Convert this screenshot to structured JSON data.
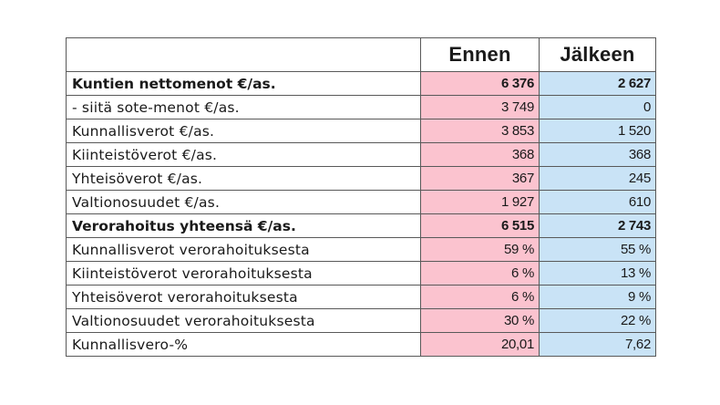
{
  "headers": {
    "label": "",
    "before": "Ennen",
    "after": "Jälkeen"
  },
  "rows": [
    {
      "label": "Kuntien nettomenot €/as.",
      "before": "6 376",
      "after": "2 627",
      "bold": true
    },
    {
      "label": "- siitä sote-menot €/as.",
      "before": "3 749",
      "after": "0",
      "bold": false
    },
    {
      "label": "Kunnallisverot €/as.",
      "before": "3 853",
      "after": "1 520",
      "bold": false
    },
    {
      "label": "Kiinteistöverot €/as.",
      "before": "368",
      "after": "368",
      "bold": false
    },
    {
      "label": "Yhteisöverot €/as.",
      "before": "367",
      "after": "245",
      "bold": false
    },
    {
      "label": "Valtionosuudet €/as.",
      "before": "1 927",
      "after": "610",
      "bold": false
    },
    {
      "label": "Verorahoitus yhteensä €/as.",
      "before": "6 515",
      "after": "2 743",
      "bold": true
    },
    {
      "label": "Kunnallisverot verorahoituksesta",
      "before": "59 %",
      "after": "55 %",
      "bold": false
    },
    {
      "label": "Kiinteistöverot verorahoituksesta",
      "before": "6 %",
      "after": "13 %",
      "bold": false
    },
    {
      "label": "Yhteisöverot verorahoituksesta",
      "before": "6 %",
      "after": "9 %",
      "bold": false
    },
    {
      "label": "Valtionosuudet verorahoituksesta",
      "before": "30 %",
      "after": "22 %",
      "bold": false
    },
    {
      "label": "Kunnallisvero-%",
      "before": "20,01",
      "after": "7,62",
      "bold": false
    }
  ],
  "colors": {
    "before_fill": "#fbc3cf",
    "after_fill": "#c9e3f6",
    "border": "#595959"
  }
}
